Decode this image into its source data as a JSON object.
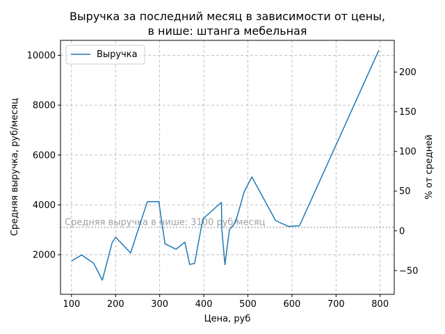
{
  "chart_data": {
    "type": "line",
    "title_line1": "Выручка за последний месяц в зависимости от цены,",
    "title_line2": "в нише: штанга мебельная",
    "xlabel": "Цена, руб",
    "ylabel": "Средняя выручка, руб/месяц",
    "ylabel_right": "% от средней",
    "xlim": [
      75,
      832
    ],
    "ylim": [
      410,
      10600
    ],
    "y2lim": [
      -80,
      240
    ],
    "x_ticks": [
      100,
      200,
      300,
      400,
      500,
      600,
      700,
      800
    ],
    "y_ticks": [
      2000,
      4000,
      6000,
      8000,
      10000
    ],
    "y2_ticks": [
      -50,
      0,
      50,
      100,
      150,
      200
    ],
    "grid": true,
    "legend_position": "top-left",
    "average_value": 3100,
    "average_label": "Средняя выручка в нише: 3100 руб/месяц",
    "series": [
      {
        "name": "Выручка",
        "color": "#1f77b4",
        "x": [
          100,
          123,
          150,
          170,
          192,
          200,
          234,
          272,
          298,
          312,
          337,
          357,
          368,
          379,
          398,
          440,
          441,
          448,
          458,
          472,
          492,
          509,
          563,
          591,
          617,
          797
        ],
        "y": [
          1750,
          1990,
          1660,
          980,
          2480,
          2700,
          2070,
          4130,
          4130,
          2440,
          2220,
          2500,
          1610,
          1650,
          3440,
          4100,
          3000,
          1600,
          3000,
          3300,
          4540,
          5120,
          3370,
          3140,
          3160,
          10200
        ]
      }
    ]
  }
}
